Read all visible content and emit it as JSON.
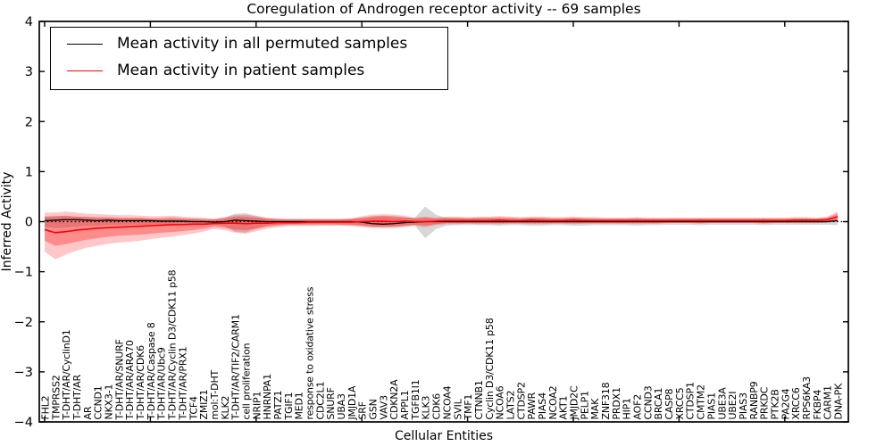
{
  "title": "Coregulation of Androgen receptor activity -- 69 samples",
  "axes": {
    "ylabel": "Inferred Activity",
    "xlabel": "Cellular Entities",
    "ytick_labels": [
      "4",
      "3",
      "2",
      "1",
      "0",
      "−1",
      "−2",
      "−3",
      "−4"
    ]
  },
  "chart_data": {
    "type": "line",
    "title": "Coregulation of Androgen receptor activity -- 69 samples",
    "xlabel": "Cellular Entities",
    "ylabel": "Inferred Activity",
    "ylim": [
      -4,
      4
    ],
    "yticks": [
      4,
      3,
      2,
      1,
      0,
      -1,
      -2,
      -3,
      -4
    ],
    "grid": false,
    "legend_position": "upper left",
    "zero_reference_line": 0,
    "categories": [
      "FHL2",
      "TMPRSS2",
      "T-DHT/AR/CyclinD1",
      "T-DHT/AR",
      "AR",
      "CCND1",
      "NKX3-1",
      "T-DHT/AR/SNURF",
      "T-DHT/AR/ARA70",
      "T-DHT/AR/CDK6",
      "T-DHT/AR/Caspase 8",
      "T-DHT/AR/Ubc9",
      "T-DHT/AR/Cyclin D3/CDK11 p58",
      "T-DHT/AR/PRX1",
      "TCF4",
      "ZMIZ1",
      "mol:T-DHT",
      "KLK2",
      "T-DHT/AR/TIF2/CARM1",
      "cell proliferation",
      "NRIP1",
      "HNRNPA1",
      "PATZ1",
      "TGIF1",
      "MED1",
      "response to oxidative stress",
      "CDC2L1",
      "SNURF",
      "UBA3",
      "JMJD1A",
      "SRF",
      "GSN",
      "VAV3",
      "CDKN2A",
      "APPL1",
      "TGFB1I1",
      "KLK3",
      "CDK6",
      "NCOA4",
      "SVIL",
      "TMF1",
      "CTNNB1",
      "Cyclin D3/CDK11 p58",
      "NCOA6",
      "LATS2",
      "CTDSP2",
      "PAWR",
      "PIAS4",
      "NCOA2",
      "AKT1",
      "JMJD2C",
      "PELP1",
      "MAK",
      "ZNF318",
      "PRDX1",
      "HIP1",
      "AOF2",
      "CCND3",
      "BRCA1",
      "CASP8",
      "XRCC5",
      "CTDSP1",
      "CMTM2",
      "PIAS1",
      "UBE3A",
      "UBE2I",
      "PIAS3",
      "RANBP9",
      "PRKDC",
      "PTK2B",
      "PA2G4",
      "XRCC6",
      "RPS6KA3",
      "FKBP4",
      "CARM1",
      "DNA-PK"
    ],
    "series": [
      {
        "name": "Mean activity in all permuted samples",
        "color": "#000000",
        "values": [
          0.02,
          0.03,
          0.04,
          0.04,
          0.03,
          0.02,
          0.03,
          0.02,
          0.02,
          0.02,
          0.02,
          0.01,
          0.01,
          0.01,
          0.0,
          0.0,
          -0.01,
          0.0,
          0.03,
          0.02,
          0.01,
          0.0,
          0.0,
          0.0,
          0.0,
          0.0,
          0.0,
          0.0,
          0.0,
          0.0,
          -0.01,
          -0.04,
          -0.05,
          -0.04,
          -0.02,
          -0.01,
          0.0,
          0.0,
          0.0,
          0.0,
          0.0,
          0.0,
          0.0,
          0.0,
          0.0,
          0.0,
          0.0,
          0.0,
          0.0,
          0.0,
          0.0,
          0.0,
          0.0,
          0.0,
          0.0,
          0.0,
          0.0,
          0.0,
          0.0,
          0.0,
          0.0,
          0.0,
          0.0,
          0.0,
          0.0,
          0.0,
          0.0,
          0.0,
          0.0,
          0.0,
          0.0,
          0.0,
          0.0,
          0.0,
          0.0,
          0.02
        ]
      },
      {
        "name": "Mean activity in patient samples",
        "color": "#ff0000",
        "values": [
          -0.16,
          -0.22,
          -0.2,
          -0.17,
          -0.15,
          -0.13,
          -0.12,
          -0.11,
          -0.1,
          -0.09,
          -0.08,
          -0.07,
          -0.06,
          -0.06,
          -0.05,
          -0.05,
          -0.04,
          -0.03,
          -0.03,
          -0.04,
          -0.03,
          -0.03,
          -0.02,
          -0.02,
          -0.02,
          -0.01,
          -0.01,
          -0.01,
          -0.01,
          -0.01,
          0.0,
          0.01,
          0.01,
          0.0,
          0.01,
          0.0,
          0.0,
          0.01,
          0.02,
          0.02,
          0.02,
          0.02,
          0.02,
          0.03,
          0.02,
          0.02,
          0.03,
          0.02,
          0.02,
          0.02,
          0.03,
          0.02,
          0.02,
          0.02,
          0.02,
          0.02,
          0.02,
          0.02,
          0.02,
          0.02,
          0.02,
          0.02,
          0.02,
          0.02,
          0.02,
          0.02,
          0.02,
          0.02,
          0.02,
          0.02,
          0.02,
          0.03,
          0.03,
          0.03,
          0.04,
          0.1
        ]
      }
    ],
    "bands": [
      {
        "name": "permuted-samples-spread",
        "color": "#8c8c8c",
        "opacity": 0.35,
        "upper": [
          0.1,
          0.12,
          0.11,
          0.1,
          0.08,
          0.07,
          0.07,
          0.06,
          0.06,
          0.06,
          0.05,
          0.05,
          0.06,
          0.05,
          0.05,
          0.05,
          0.05,
          0.08,
          0.16,
          0.17,
          0.12,
          0.07,
          0.05,
          0.05,
          0.05,
          0.05,
          0.05,
          0.05,
          0.05,
          0.06,
          0.07,
          0.09,
          0.1,
          0.09,
          0.08,
          0.08,
          0.3,
          0.14,
          0.07,
          0.06,
          0.06,
          0.06,
          0.06,
          0.06,
          0.05,
          0.05,
          0.06,
          0.06,
          0.05,
          0.05,
          0.06,
          0.06,
          0.05,
          0.05,
          0.05,
          0.05,
          0.06,
          0.05,
          0.05,
          0.05,
          0.05,
          0.05,
          0.06,
          0.05,
          0.05,
          0.05,
          0.05,
          0.05,
          0.06,
          0.05,
          0.05,
          0.05,
          0.05,
          0.05,
          0.05,
          0.06
        ],
        "lower": [
          -0.1,
          -0.13,
          -0.12,
          -0.1,
          -0.09,
          -0.08,
          -0.07,
          -0.07,
          -0.06,
          -0.06,
          -0.06,
          -0.05,
          -0.06,
          -0.06,
          -0.05,
          -0.05,
          -0.05,
          -0.09,
          -0.2,
          -0.22,
          -0.14,
          -0.08,
          -0.06,
          -0.05,
          -0.05,
          -0.05,
          -0.05,
          -0.05,
          -0.06,
          -0.06,
          -0.08,
          -0.1,
          -0.11,
          -0.1,
          -0.09,
          -0.08,
          -0.33,
          -0.15,
          -0.08,
          -0.07,
          -0.07,
          -0.07,
          -0.07,
          -0.08,
          -0.07,
          -0.07,
          -0.08,
          -0.08,
          -0.07,
          -0.07,
          -0.08,
          -0.08,
          -0.07,
          -0.07,
          -0.07,
          -0.07,
          -0.08,
          -0.07,
          -0.07,
          -0.06,
          -0.06,
          -0.06,
          -0.07,
          -0.06,
          -0.06,
          -0.06,
          -0.06,
          -0.06,
          -0.07,
          -0.06,
          -0.06,
          -0.06,
          -0.06,
          -0.06,
          -0.06,
          -0.07
        ]
      },
      {
        "name": "patient-samples-spread-outer",
        "color": "#ff0000",
        "opacity": 0.22,
        "upper": [
          0.18,
          0.18,
          0.2,
          0.18,
          0.16,
          0.15,
          0.14,
          0.13,
          0.13,
          0.12,
          0.11,
          0.11,
          0.12,
          0.1,
          0.09,
          0.08,
          0.06,
          0.09,
          0.13,
          0.14,
          0.11,
          0.08,
          0.07,
          0.06,
          0.06,
          0.06,
          0.06,
          0.06,
          0.06,
          0.07,
          0.11,
          0.14,
          0.15,
          0.14,
          0.12,
          0.08,
          0.1,
          0.08,
          0.1,
          0.1,
          0.09,
          0.1,
          0.1,
          0.11,
          0.1,
          0.09,
          0.1,
          0.1,
          0.09,
          0.09,
          0.1,
          0.09,
          0.09,
          0.08,
          0.08,
          0.08,
          0.09,
          0.08,
          0.08,
          0.08,
          0.08,
          0.08,
          0.08,
          0.08,
          0.08,
          0.08,
          0.08,
          0.08,
          0.08,
          0.08,
          0.08,
          0.09,
          0.09,
          0.08,
          0.1,
          0.2
        ],
        "lower": [
          -0.6,
          -0.75,
          -0.66,
          -0.58,
          -0.52,
          -0.48,
          -0.44,
          -0.42,
          -0.4,
          -0.38,
          -0.35,
          -0.32,
          -0.3,
          -0.27,
          -0.24,
          -0.2,
          -0.14,
          -0.17,
          -0.22,
          -0.24,
          -0.19,
          -0.14,
          -0.11,
          -0.09,
          -0.09,
          -0.09,
          -0.08,
          -0.08,
          -0.08,
          -0.09,
          -0.11,
          -0.13,
          -0.13,
          -0.13,
          -0.11,
          -0.08,
          -0.11,
          -0.07,
          -0.05,
          -0.05,
          -0.04,
          -0.05,
          -0.05,
          -0.05,
          -0.04,
          -0.04,
          -0.05,
          -0.05,
          -0.04,
          -0.04,
          -0.05,
          -0.04,
          -0.04,
          -0.04,
          -0.04,
          -0.04,
          -0.04,
          -0.04,
          -0.04,
          -0.03,
          -0.03,
          -0.03,
          -0.04,
          -0.03,
          -0.03,
          -0.03,
          -0.03,
          -0.03,
          -0.04,
          -0.03,
          -0.03,
          -0.03,
          -0.03,
          -0.03,
          -0.02,
          0.01
        ]
      },
      {
        "name": "patient-samples-spread-inner",
        "color": "#ff0000",
        "opacity": 0.3,
        "upper": [
          0.1,
          0.1,
          0.12,
          0.1,
          0.1,
          0.09,
          0.09,
          0.08,
          0.08,
          0.08,
          0.07,
          0.07,
          0.08,
          0.07,
          0.06,
          0.05,
          0.04,
          0.06,
          0.1,
          0.1,
          0.08,
          0.06,
          0.05,
          0.04,
          0.04,
          0.04,
          0.04,
          0.04,
          0.04,
          0.05,
          0.08,
          0.11,
          0.12,
          0.11,
          0.09,
          0.06,
          0.08,
          0.06,
          0.08,
          0.08,
          0.07,
          0.08,
          0.08,
          0.09,
          0.08,
          0.07,
          0.08,
          0.08,
          0.07,
          0.07,
          0.08,
          0.07,
          0.07,
          0.06,
          0.06,
          0.06,
          0.07,
          0.06,
          0.06,
          0.06,
          0.06,
          0.06,
          0.06,
          0.06,
          0.06,
          0.06,
          0.06,
          0.06,
          0.06,
          0.06,
          0.06,
          0.07,
          0.07,
          0.06,
          0.08,
          0.16
        ],
        "lower": [
          -0.38,
          -0.48,
          -0.45,
          -0.4,
          -0.36,
          -0.33,
          -0.3,
          -0.28,
          -0.27,
          -0.26,
          -0.24,
          -0.22,
          -0.21,
          -0.19,
          -0.17,
          -0.14,
          -0.1,
          -0.12,
          -0.16,
          -0.17,
          -0.14,
          -0.1,
          -0.08,
          -0.06,
          -0.06,
          -0.06,
          -0.06,
          -0.06,
          -0.06,
          -0.07,
          -0.08,
          -0.1,
          -0.1,
          -0.1,
          -0.08,
          -0.06,
          -0.08,
          -0.05,
          -0.03,
          -0.03,
          -0.03,
          -0.03,
          -0.03,
          -0.03,
          -0.03,
          -0.03,
          -0.03,
          -0.03,
          -0.03,
          -0.03,
          -0.03,
          -0.03,
          -0.03,
          -0.03,
          -0.03,
          -0.03,
          -0.03,
          -0.03,
          -0.03,
          -0.02,
          -0.02,
          -0.02,
          -0.03,
          -0.02,
          -0.02,
          -0.02,
          -0.02,
          -0.02,
          -0.03,
          -0.02,
          -0.02,
          -0.02,
          -0.02,
          -0.02,
          -0.01,
          0.02
        ]
      }
    ]
  }
}
